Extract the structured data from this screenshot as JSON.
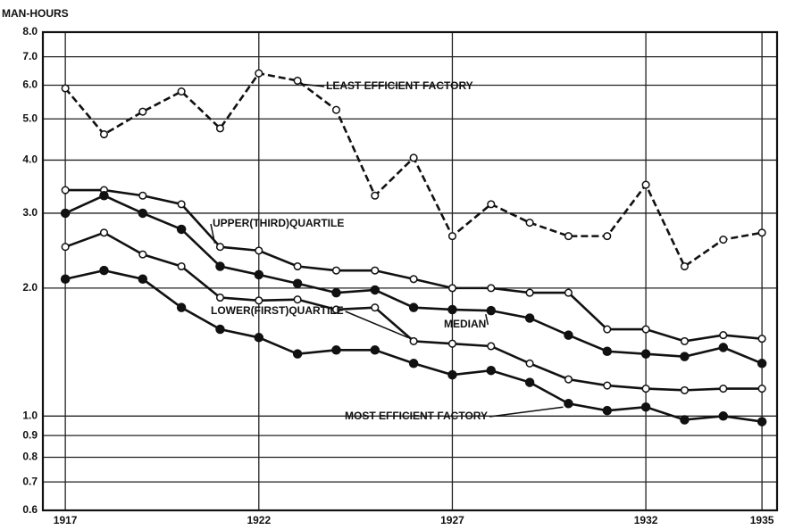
{
  "chart_data": {
    "type": "line",
    "y_label": "MAN-HOURS",
    "log_y": true,
    "grid": true,
    "x": [
      1917,
      1918,
      1919,
      1920,
      1921,
      1922,
      1923,
      1924,
      1925,
      1926,
      1927,
      1928,
      1929,
      1930,
      1931,
      1932,
      1933,
      1934,
      1935
    ],
    "xlim": [
      1916.42,
      1935.39
    ],
    "xticks": [
      1917,
      1922,
      1927,
      1932,
      1935
    ],
    "ylim": [
      0.6,
      8.0
    ],
    "yticks": [
      0.6,
      0.7,
      0.8,
      0.9,
      {
        "value": 1.0,
        "label": "1.0"
      },
      {
        "value": 2.0,
        "label": "2.0"
      },
      {
        "value": 3.0,
        "label": "3.0"
      },
      {
        "value": 4.0,
        "label": "4.0"
      },
      {
        "value": 5.0,
        "label": "5.0"
      },
      {
        "value": 6.0,
        "label": "6.0"
      },
      {
        "value": 7.0,
        "label": "7.0"
      },
      {
        "value": 8.0,
        "label": "8.0"
      }
    ],
    "series": [
      {
        "name": "LEAST EFFICIENT FACTORY",
        "color": "#111111",
        "line_style": "dashed",
        "marker": "open",
        "values": [
          5.9,
          4.6,
          5.2,
          5.8,
          4.75,
          6.4,
          6.15,
          5.25,
          3.3,
          4.05,
          2.65,
          3.15,
          2.85,
          2.65,
          2.65,
          3.5,
          2.25,
          2.6,
          2.7
        ]
      },
      {
        "name": "UPPER(THIRD)QUARTILE",
        "color": "#111111",
        "line_style": "solid",
        "marker": "open",
        "values": [
          3.4,
          3.4,
          3.3,
          3.15,
          2.5,
          2.45,
          2.25,
          2.2,
          2.2,
          2.1,
          2.0,
          2.0,
          1.95,
          1.95,
          1.6,
          1.6,
          1.5,
          1.55,
          1.52
        ]
      },
      {
        "name": "MEDIAN",
        "color": "#111111",
        "line_style": "solid",
        "marker": "filled",
        "values": [
          3.0,
          3.3,
          3.0,
          2.75,
          2.25,
          2.15,
          2.05,
          1.95,
          1.98,
          1.8,
          1.78,
          1.77,
          1.7,
          1.55,
          1.42,
          1.4,
          1.38,
          1.45,
          1.33
        ]
      },
      {
        "name": "LOWER(FIRST)QUARTILE",
        "color": "#111111",
        "line_style": "solid",
        "marker": "open",
        "values": [
          2.5,
          2.7,
          2.4,
          2.25,
          1.9,
          1.87,
          1.88,
          1.78,
          1.8,
          1.5,
          1.48,
          1.46,
          1.33,
          1.22,
          1.18,
          1.16,
          1.15,
          1.16,
          1.16
        ]
      },
      {
        "name": "MOST EFFICIENT FACTORY",
        "color": "#111111",
        "line_style": "solid",
        "marker": "filled",
        "values": [
          2.1,
          2.2,
          2.1,
          1.8,
          1.6,
          1.53,
          1.4,
          1.43,
          1.43,
          1.33,
          1.25,
          1.28,
          1.2,
          1.07,
          1.03,
          1.05,
          0.98,
          1.0,
          0.97
        ]
      }
    ]
  }
}
